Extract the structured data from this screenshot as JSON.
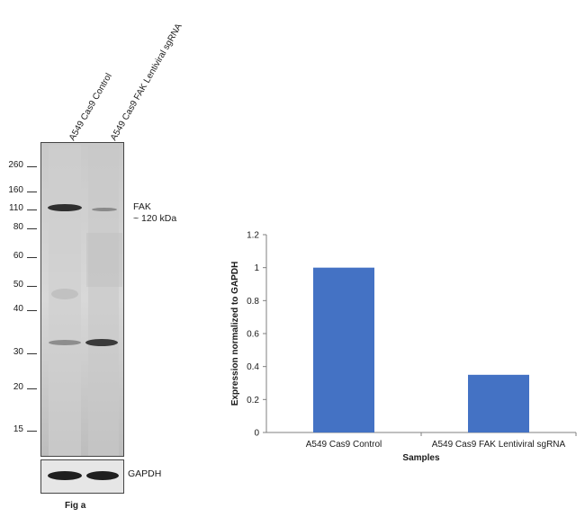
{
  "western_blot": {
    "lanes": [
      "A549 Cas9 Control",
      "A549 Cas9 FAK Lentiviral sgRNA"
    ],
    "mw_markers": [
      "260",
      "160",
      "110",
      "80",
      "60",
      "50",
      "40",
      "30",
      "20",
      "15"
    ],
    "target_label": "FAK",
    "target_size": "~ 120 kDa",
    "loading_control": "GAPDH",
    "figure_label": "Fig a"
  },
  "chart_data": {
    "type": "bar",
    "categories": [
      "A549 Cas9 Control",
      "A549 Cas9 FAK Lentiviral sgRNA"
    ],
    "values": [
      1.0,
      0.35
    ],
    "title": "",
    "xlabel": "Samples",
    "ylabel": "Expression normalized to GAPDH",
    "ylim": [
      0,
      1.2
    ],
    "yticks": [
      "0",
      "0.2",
      "0.4",
      "0.6",
      "0.8",
      "1",
      "1.2"
    ],
    "grid": false,
    "bar_color": "#4472C4"
  }
}
